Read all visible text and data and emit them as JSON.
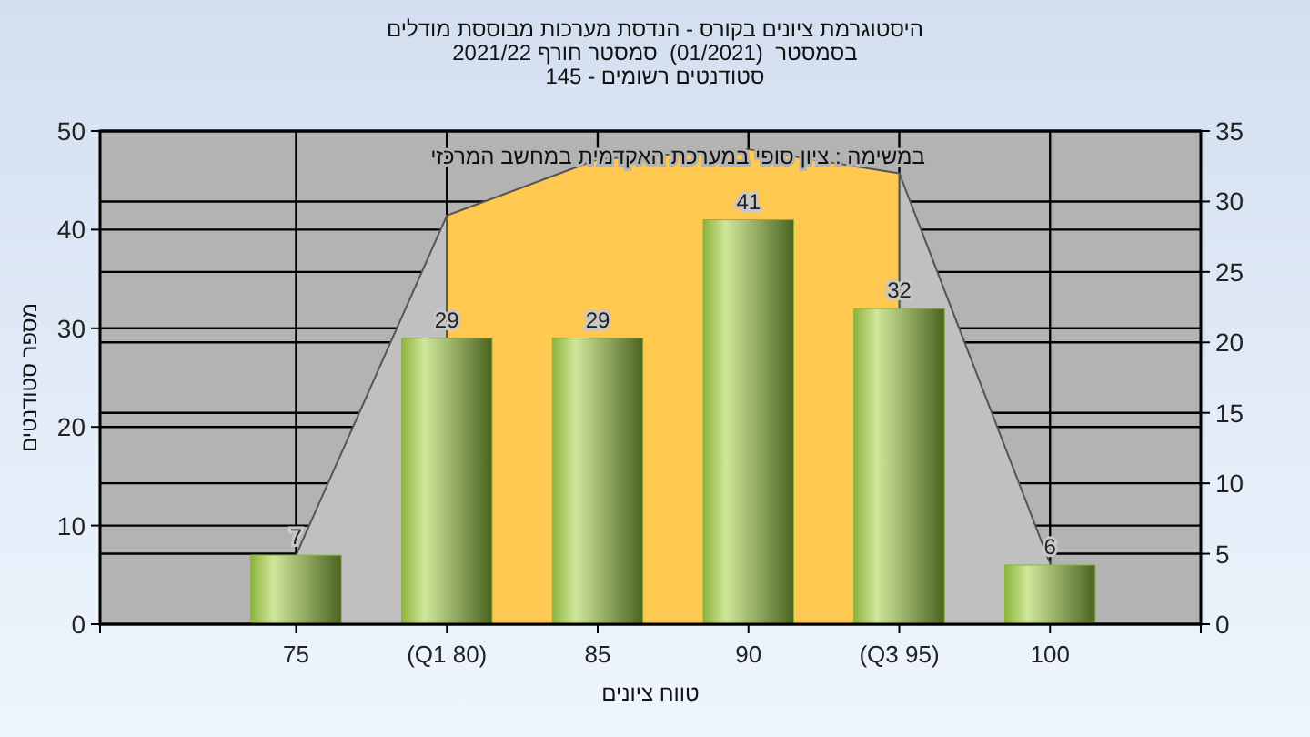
{
  "chart_data": {
    "type": "bar",
    "title": "היסטוגרמת ציונים בקורס - הנדסת מערכות מבוססת מודלים",
    "subtitle": "בסמסטר  (01/2021)  סמסטר חורף 2021/22\nסטודנטים רשומים - 145",
    "xlabel": "טווח ציונים",
    "ylabel": "מספר סטודנטים",
    "categories": [
      "75",
      "(Q1 80)",
      "85",
      "90",
      "(Q3 95)",
      "100"
    ],
    "series": [
      {
        "type": "area",
        "axis": "y2",
        "color": "#c0c0c0",
        "values": [
          4.9,
          29,
          null,
          null,
          32,
          4.3
        ]
      },
      {
        "type": "area",
        "axis": "y2",
        "color": "#ffc850",
        "values": [
          null,
          29,
          33,
          33.7,
          32,
          null
        ]
      },
      {
        "color": "#8cb43c",
        "values": [
          7,
          29,
          29,
          41,
          32,
          6
        ],
        "value_labels": [
          "7",
          "29",
          "29",
          "41",
          "32",
          "6"
        ]
      }
    ],
    "ylim": [
      0,
      50
    ],
    "yticks": [
      0,
      10,
      20,
      30,
      40,
      50
    ],
    "y2lim": [
      0,
      35
    ],
    "y2ticks": [
      0,
      5,
      10,
      15,
      20,
      25,
      30,
      35
    ],
    "grid": true,
    "annotations": [
      "במשימה : ציון סופי במערכת האקדמית במחשב המרכזי"
    ]
  }
}
